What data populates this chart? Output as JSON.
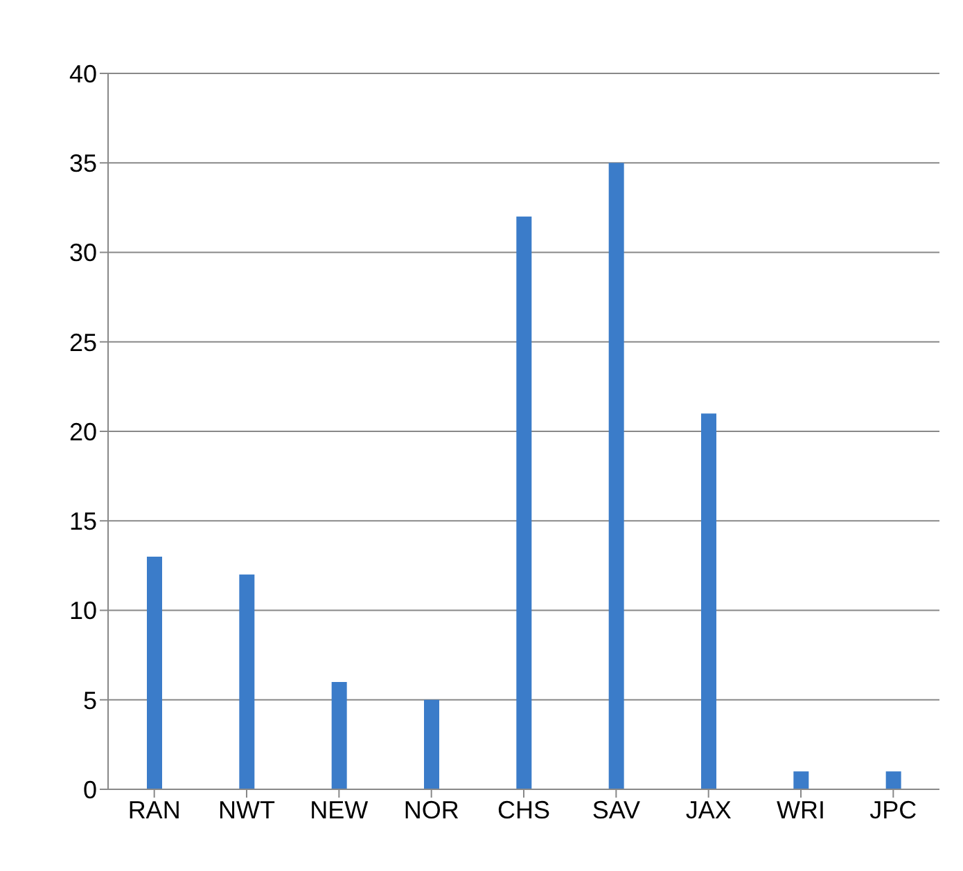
{
  "chart_data": {
    "type": "bar",
    "categories": [
      "RAN",
      "NWT",
      "NEW",
      "NOR",
      "CHS",
      "SAV",
      "JAX",
      "WRI",
      "JPC"
    ],
    "values": [
      13,
      12,
      6,
      5,
      32,
      35,
      21,
      1,
      1
    ],
    "color": "#3b7cc9",
    "ylim": [
      0,
      40
    ],
    "yticks": [
      0,
      5,
      10,
      15,
      20,
      25,
      30,
      35,
      40
    ],
    "grid": "y",
    "legend": false
  }
}
